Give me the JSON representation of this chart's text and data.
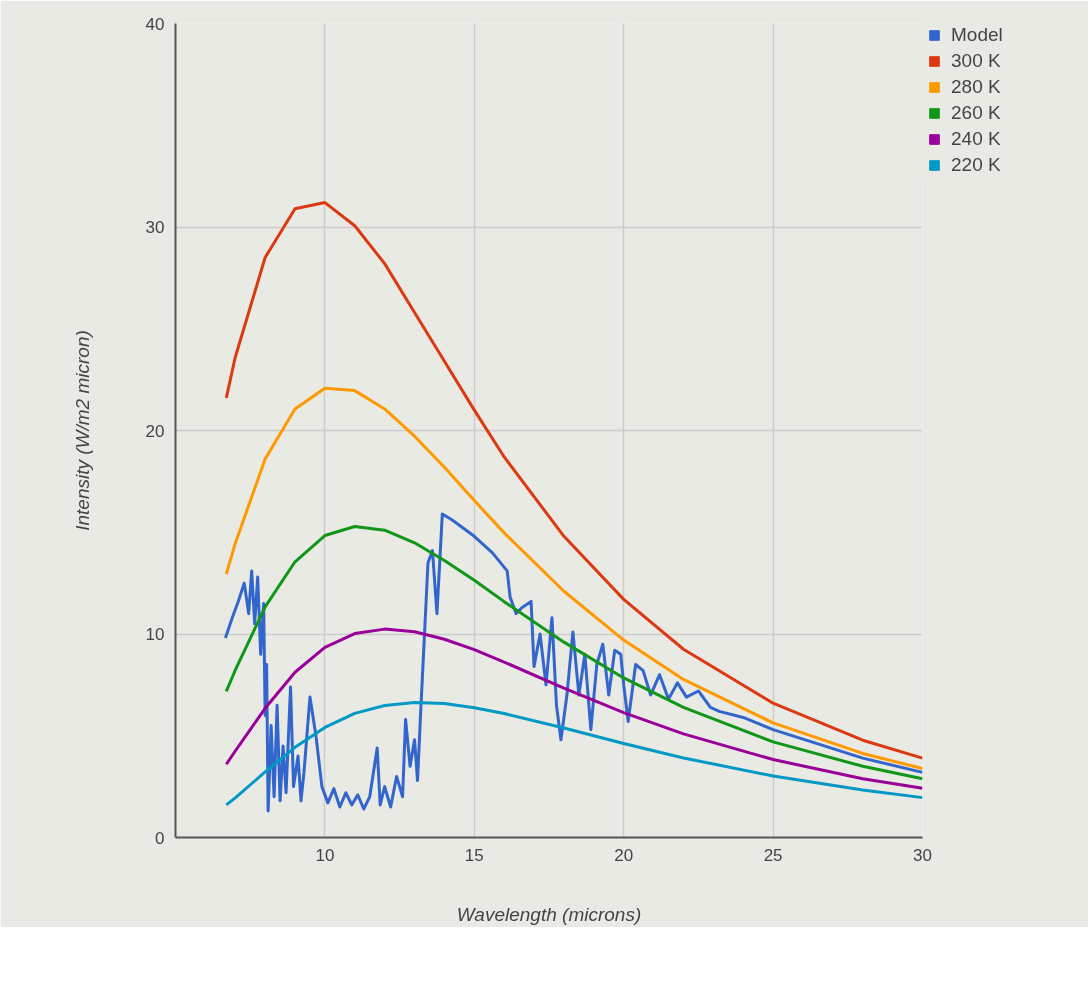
{
  "chart_data": {
    "type": "line",
    "xlabel": "Wavelength (microns)",
    "ylabel": "Intensity (W/m2 micron)",
    "xlim": [
      5,
      30
    ],
    "ylim": [
      0,
      40
    ],
    "xticks": [
      10,
      15,
      20,
      25,
      30
    ],
    "yticks": [
      0,
      10,
      20,
      30,
      40
    ],
    "grid": true,
    "legend": "top right",
    "marker": "none",
    "line_style": "solid",
    "series": [
      {
        "name": "Model",
        "color": "#3366cc",
        "x": [
          6.67,
          6.9,
          7.1,
          7.3,
          7.45,
          7.55,
          7.65,
          7.75,
          7.85,
          7.95,
          8.0,
          8.05,
          8.1,
          8.2,
          8.3,
          8.4,
          8.5,
          8.6,
          8.7,
          8.85,
          8.95,
          9.1,
          9.2,
          9.3,
          9.5,
          9.7,
          9.9,
          10.1,
          10.3,
          10.5,
          10.7,
          10.9,
          11.1,
          11.3,
          11.5,
          11.75,
          11.85,
          12.0,
          12.2,
          12.4,
          12.6,
          12.7,
          12.85,
          13.0,
          13.1,
          13.2,
          13.3,
          13.45,
          13.6,
          13.75,
          13.93,
          14.26,
          15.0,
          15.6,
          16.1,
          16.2,
          16.4,
          16.6,
          16.9,
          17.0,
          17.2,
          17.4,
          17.6,
          17.75,
          17.9,
          18.1,
          18.3,
          18.5,
          18.7,
          18.9,
          19.1,
          19.3,
          19.5,
          19.7,
          19.9,
          20.0,
          20.15,
          20.4,
          20.65,
          20.9,
          21.2,
          21.5,
          21.8,
          22.1,
          22.5,
          22.9,
          23.2,
          24.0,
          25.0,
          26.5,
          28.0,
          30.0
        ],
        "values": [
          9.8,
          10.8,
          11.6,
          12.5,
          11.0,
          13.1,
          10.5,
          12.8,
          9.0,
          11.5,
          6.0,
          8.5,
          1.3,
          5.5,
          2.0,
          6.5,
          1.8,
          4.5,
          2.2,
          7.4,
          2.5,
          4.0,
          1.8,
          3.2,
          6.9,
          5.0,
          2.5,
          1.7,
          2.4,
          1.5,
          2.2,
          1.6,
          2.1,
          1.4,
          2.0,
          4.4,
          1.6,
          2.5,
          1.5,
          3.0,
          2.0,
          5.8,
          3.5,
          4.8,
          2.8,
          6.0,
          9.0,
          13.5,
          14.1,
          11.0,
          15.9,
          15.6,
          14.8,
          14.0,
          13.1,
          11.8,
          11.0,
          11.3,
          11.6,
          8.4,
          10.0,
          7.5,
          10.8,
          6.5,
          4.8,
          7.0,
          10.1,
          7.0,
          9.0,
          5.3,
          8.5,
          9.5,
          7.0,
          9.2,
          9.0,
          7.5,
          5.7,
          8.5,
          8.2,
          7.0,
          8.0,
          6.8,
          7.6,
          6.9,
          7.2,
          6.4,
          6.2,
          5.9,
          5.3,
          4.6,
          3.9,
          3.2
        ]
      },
      {
        "name": "300 K",
        "color": "#dc3912",
        "x": [
          6.7,
          7,
          8,
          9,
          10,
          11,
          12,
          13,
          14,
          15,
          16,
          18,
          20,
          22,
          25,
          28,
          30
        ],
        "values": [
          21.6,
          23.6,
          28.5,
          30.9,
          31.2,
          30.06,
          28.2,
          25.8,
          23.4,
          21.0,
          18.7,
          14.8,
          11.7,
          9.25,
          6.6,
          4.78,
          3.9
        ]
      },
      {
        "name": "280 K",
        "color": "#ff9900",
        "x": [
          6.7,
          7,
          8,
          9,
          10,
          11,
          12,
          13,
          14,
          15,
          16,
          18,
          20,
          22,
          25,
          28,
          30
        ],
        "values": [
          12.95,
          14.45,
          18.6,
          21.06,
          22.08,
          21.96,
          21.06,
          19.72,
          18.19,
          16.56,
          14.97,
          12.1,
          9.7,
          7.77,
          5.63,
          4.13,
          3.39
        ]
      },
      {
        "name": "260 K",
        "color": "#109618",
        "x": [
          6.7,
          7,
          8,
          9,
          10,
          11,
          12,
          13,
          14,
          15,
          16,
          18,
          20,
          22,
          25,
          28,
          30
        ],
        "values": [
          7.18,
          8.22,
          11.33,
          13.55,
          14.84,
          15.28,
          15.1,
          14.48,
          13.61,
          12.64,
          11.59,
          9.6,
          7.84,
          6.39,
          4.7,
          3.5,
          2.89
        ]
      },
      {
        "name": "240 K",
        "color": "#990099",
        "x": [
          6.7,
          7,
          8,
          9,
          10,
          11,
          12,
          13,
          14,
          15,
          16,
          18,
          20,
          22,
          25,
          28,
          30
        ],
        "values": [
          3.6,
          4.25,
          6.35,
          8.12,
          9.34,
          10.02,
          10.24,
          10.11,
          9.74,
          9.23,
          8.62,
          7.34,
          6.14,
          5.09,
          3.83,
          2.89,
          2.42
        ]
      },
      {
        "name": "220 K",
        "color": "#0099c6",
        "x": [
          6.7,
          7,
          8,
          9,
          10,
          11,
          12,
          13,
          14,
          15,
          16,
          18,
          20,
          22,
          25,
          28,
          30
        ],
        "values": [
          1.6,
          1.95,
          3.22,
          4.43,
          5.41,
          6.1,
          6.49,
          6.63,
          6.58,
          6.38,
          6.09,
          5.38,
          4.62,
          3.91,
          3.02,
          2.33,
          1.96
        ]
      }
    ]
  }
}
